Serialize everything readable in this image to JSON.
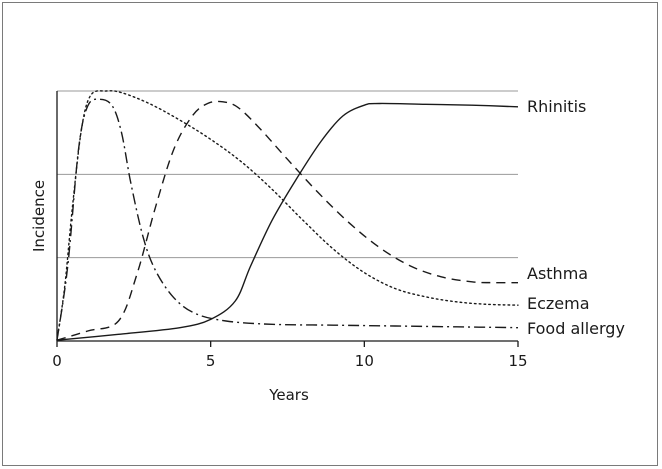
{
  "chart_data": {
    "type": "line",
    "title": "",
    "xlabel": "Years",
    "ylabel": "Incidence",
    "xlim": [
      0,
      15
    ],
    "ylim": [
      0,
      3
    ],
    "x_ticks": [
      0,
      5,
      10,
      15
    ],
    "y_ticks_shown": false,
    "grid": "horizontal",
    "legend": "labels at right end of each line",
    "series": [
      {
        "name": "Rhinitis",
        "style": "solid",
        "points": [
          [
            0,
            0.01
          ],
          [
            2,
            0.08
          ],
          [
            4,
            0.16
          ],
          [
            5,
            0.26
          ],
          [
            5.8,
            0.48
          ],
          [
            6.3,
            0.9
          ],
          [
            7,
            1.45
          ],
          [
            7.8,
            1.95
          ],
          [
            8.6,
            2.4
          ],
          [
            9.3,
            2.7
          ],
          [
            10,
            2.83
          ],
          [
            10.5,
            2.85
          ],
          [
            12,
            2.84
          ],
          [
            13.5,
            2.83
          ],
          [
            15,
            2.81
          ]
        ]
      },
      {
        "name": "Asthma",
        "style": "dashed",
        "points": [
          [
            0,
            0.01
          ],
          [
            1,
            0.12
          ],
          [
            2,
            0.24
          ],
          [
            2.6,
            0.8
          ],
          [
            3.2,
            1.6
          ],
          [
            3.8,
            2.3
          ],
          [
            4.4,
            2.7
          ],
          [
            4.9,
            2.85
          ],
          [
            5.4,
            2.87
          ],
          [
            5.9,
            2.8
          ],
          [
            6.6,
            2.55
          ],
          [
            7.5,
            2.18
          ],
          [
            8.5,
            1.78
          ],
          [
            9.5,
            1.42
          ],
          [
            10.5,
            1.12
          ],
          [
            11.5,
            0.9
          ],
          [
            12.5,
            0.77
          ],
          [
            13.5,
            0.71
          ],
          [
            14.2,
            0.7
          ],
          [
            15,
            0.7
          ]
        ]
      },
      {
        "name": "Eczema",
        "style": "dotted",
        "points": [
          [
            0,
            0.01
          ],
          [
            0.25,
            0.65
          ],
          [
            0.5,
            1.6
          ],
          [
            0.8,
            2.55
          ],
          [
            1.1,
            2.95
          ],
          [
            1.6,
            3.0
          ],
          [
            2.1,
            2.98
          ],
          [
            3,
            2.85
          ],
          [
            4,
            2.65
          ],
          [
            5,
            2.42
          ],
          [
            6,
            2.15
          ],
          [
            7,
            1.82
          ],
          [
            8,
            1.45
          ],
          [
            9,
            1.1
          ],
          [
            10,
            0.82
          ],
          [
            11,
            0.63
          ],
          [
            12,
            0.53
          ],
          [
            13,
            0.47
          ],
          [
            14,
            0.44
          ],
          [
            15,
            0.43
          ]
        ]
      },
      {
        "name": "Food allergy",
        "style": "dash-dot",
        "points": [
          [
            0,
            0.01
          ],
          [
            0.35,
            0.9
          ],
          [
            0.7,
            2.3
          ],
          [
            1.0,
            2.82
          ],
          [
            1.4,
            2.9
          ],
          [
            1.8,
            2.82
          ],
          [
            2.1,
            2.5
          ],
          [
            2.4,
            1.9
          ],
          [
            2.8,
            1.25
          ],
          [
            3.2,
            0.85
          ],
          [
            3.8,
            0.52
          ],
          [
            4.5,
            0.33
          ],
          [
            5.5,
            0.24
          ],
          [
            7,
            0.2
          ],
          [
            9,
            0.19
          ],
          [
            11,
            0.18
          ],
          [
            13,
            0.17
          ],
          [
            15,
            0.16
          ]
        ]
      }
    ]
  },
  "colors": {
    "line": "#1a1a1a",
    "grid": "#9a9a9a",
    "frame": "#7a7a7a"
  }
}
